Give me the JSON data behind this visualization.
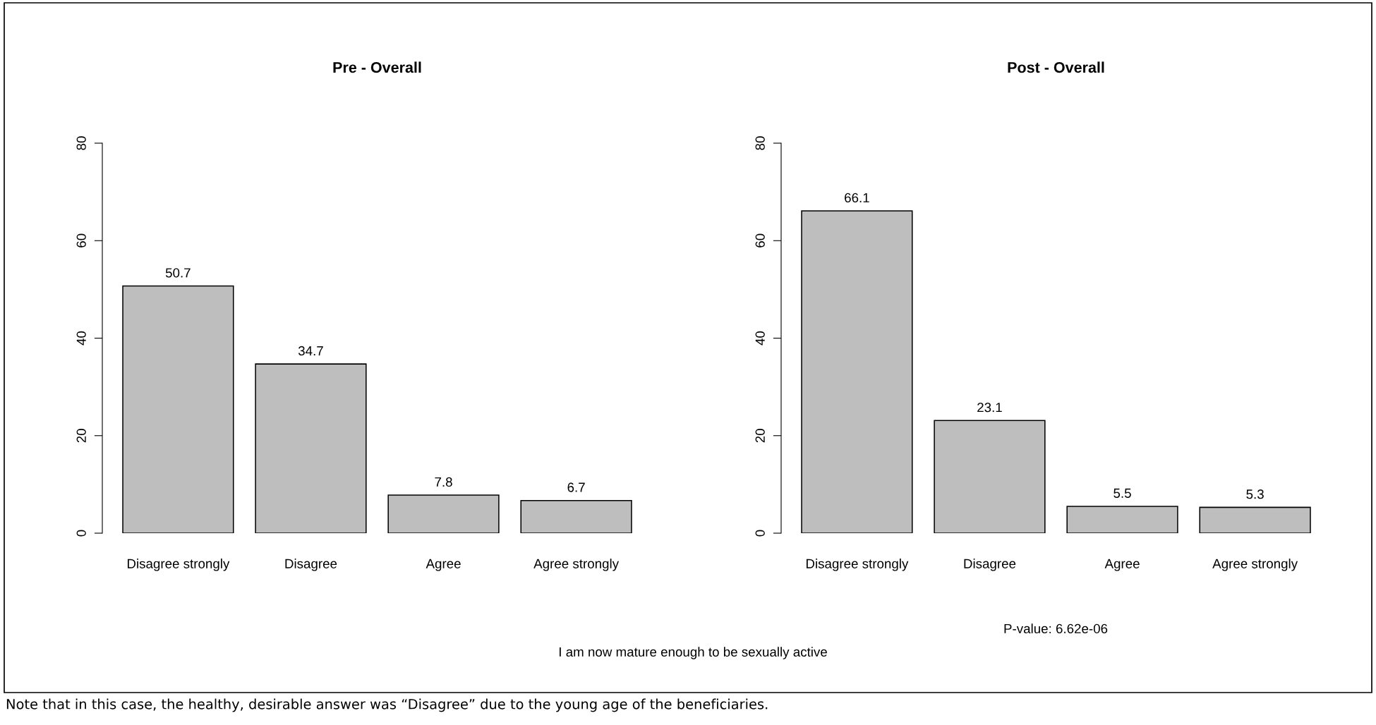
{
  "chart_data": [
    {
      "type": "bar",
      "title": "Pre - Overall",
      "categories": [
        "Disagree strongly",
        "Disagree",
        "Agree",
        "Agree strongly"
      ],
      "values": [
        50.7,
        34.7,
        7.8,
        6.7
      ],
      "color": "#bebebe",
      "ylim": [
        0,
        80
      ],
      "yticks": [
        0,
        20,
        40,
        60,
        80
      ],
      "data_labels": true,
      "grid": false
    },
    {
      "type": "bar",
      "title": "Post - Overall",
      "categories": [
        "Disagree strongly",
        "Disagree",
        "Agree",
        "Agree strongly"
      ],
      "values": [
        66.1,
        23.1,
        5.5,
        5.3
      ],
      "color": "#bebebe",
      "ylim": [
        0,
        80
      ],
      "yticks": [
        0,
        20,
        40,
        60,
        80
      ],
      "data_labels": true,
      "grid": false,
      "annotations": [
        "P-value: 6.62e-06",
        "I am now mature enough to be sexually active",
        "Note that in this case, the healthy, desirable answer was “Disagree” due to the young age of the beneficiaries."
      ]
    }
  ]
}
